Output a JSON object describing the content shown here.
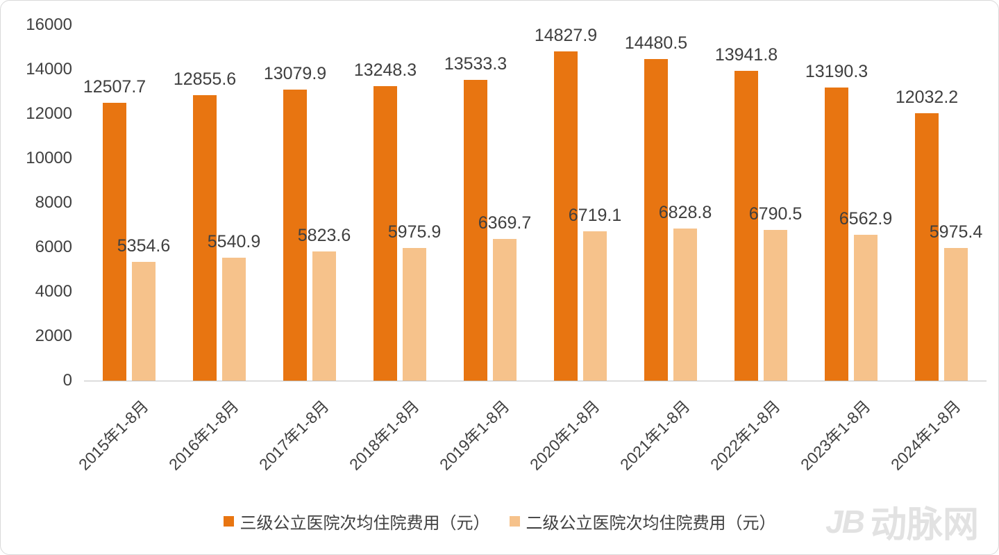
{
  "chart_data": {
    "type": "bar",
    "categories": [
      "2015年1-8月",
      "2016年1-8月",
      "2017年1-8月",
      "2018年1-8月",
      "2019年1-8月",
      "2020年1-8月",
      "2021年1-8月",
      "2022年1-8月",
      "2023年1-8月",
      "2024年1-8月"
    ],
    "series": [
      {
        "name": "三级公立医院次均住院费用（元）",
        "color": "#e87511",
        "values": [
          12507.7,
          12855.6,
          13079.9,
          13248.3,
          13533.3,
          14827.9,
          14480.5,
          13941.8,
          13190.3,
          12032.2
        ]
      },
      {
        "name": "二级公立医院次均住院费用（元）",
        "color": "#f6c28b",
        "values": [
          5354.6,
          5540.9,
          5823.6,
          5975.9,
          6369.7,
          6719.1,
          6828.8,
          6790.5,
          6562.9,
          5975.4
        ]
      }
    ],
    "title": "",
    "xlabel": "",
    "ylabel": "",
    "ylim": [
      0,
      16000
    ],
    "yticks": [
      0,
      2000,
      4000,
      6000,
      8000,
      10000,
      12000,
      14000,
      16000
    ],
    "grid": false,
    "legend_position": "bottom",
    "data_labels": true
  },
  "watermark": {
    "logo": "JB",
    "text": "动脉网"
  },
  "colors": {
    "series1": "#e87511",
    "series2": "#f6c28b",
    "label_text": "#3f3f3f",
    "axis_text": "#404040",
    "axis_line": "#bfbfbf",
    "watermark": "#e2e2e2",
    "border": "#d9d9d9"
  }
}
